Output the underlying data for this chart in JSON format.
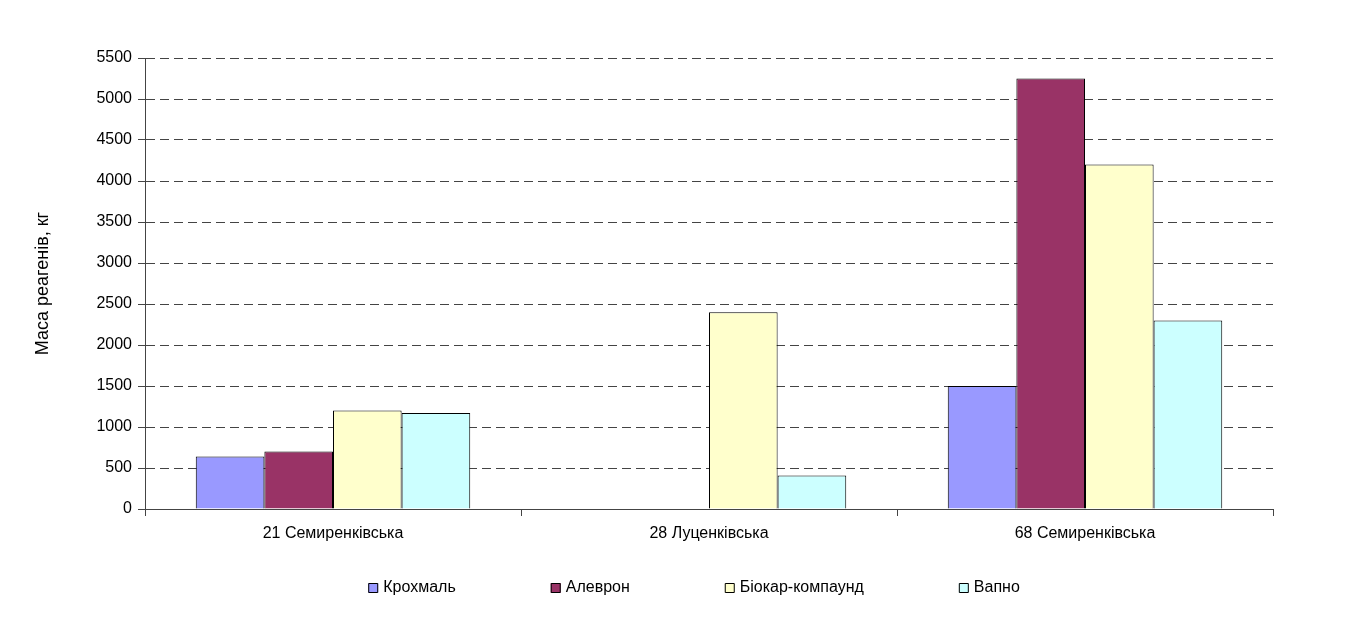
{
  "chart_data": {
    "type": "bar",
    "ylabel": "Маса реагенів, кг",
    "categories": [
      "21 Семиренківська",
      "28 Луценківська",
      "68 Семиренківська"
    ],
    "series": [
      {
        "name": "Крохмаль",
        "color": "#9999ff",
        "values": [
          640,
          null,
          1500
        ]
      },
      {
        "name": "Алеврон",
        "color": "#993366",
        "values": [
          700,
          null,
          5250
        ]
      },
      {
        "name": "Біокар-компаунд",
        "color": "#ffffcc",
        "values": [
          1200,
          2400,
          4200
        ]
      },
      {
        "name": "Вапно",
        "color": "#ccffff",
        "values": [
          1170,
          410,
          2300
        ]
      }
    ],
    "ylim": [
      0,
      5500
    ],
    "yticks": [
      0,
      500,
      1000,
      1500,
      2000,
      2500,
      3000,
      3500,
      4000,
      4500,
      5000,
      5500
    ],
    "grid": "y",
    "legend": "bottom"
  }
}
